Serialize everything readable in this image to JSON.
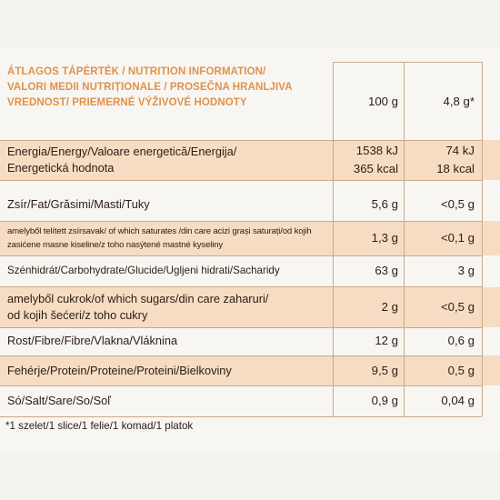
{
  "header": {
    "title_lines": [
      "ÁTLAGOS TÁPÉRTÉK / NUTRITION INFORMATION/",
      "VALORI MEDII NUTRIȚIONALE / PROSEČNA HRANLJIVA",
      "VREDNOST/ PRIEMERNÉ VÝŽIVOVÉ HODNOTY"
    ],
    "col_100g": "100 g",
    "col_serving": "4,8 g*"
  },
  "rows": [
    {
      "name_lines": [
        "Energia/Energy/Valoare energetică/Energija/",
        "Energetická hodnota"
      ],
      "per100": [
        "1538 kJ",
        "365 kcal"
      ],
      "serving": [
        "74 kJ",
        "18 kcal"
      ]
    },
    {
      "name_lines": [
        "Zsír/Fat/Grăsimi/Masti/Tuky"
      ],
      "per100": [
        "5,6 g"
      ],
      "serving": [
        "<0,5 g"
      ]
    },
    {
      "name_lines": [
        "amelyből telített zsírsavak/ of which saturates /din care acizi grași saturați/od kojih",
        "zasićene masne kiseline/z toho nasýtené mastné kyseliny"
      ],
      "per100": [
        "1,3 g"
      ],
      "serving": [
        "<0,1 g"
      ]
    },
    {
      "name_lines": [
        "Szénhidrát/Carbohydrate/Glucide/Ugljeni hidrati/Sacharidy"
      ],
      "per100": [
        "63 g"
      ],
      "serving": [
        "3 g"
      ]
    },
    {
      "name_lines": [
        "amelyből cukrok/of which sugars/din care zaharuri/",
        "od kojih šećeri/z toho cukry"
      ],
      "per100": [
        "2 g"
      ],
      "serving": [
        "<0,5 g"
      ]
    },
    {
      "name_lines": [
        "Rost/Fibre/Fibre/Vlakna/Vláknina"
      ],
      "per100": [
        "12 g"
      ],
      "serving": [
        "0,6 g"
      ]
    },
    {
      "name_lines": [
        "Fehérje/Protein/Proteine/Proteini/Bielkoviny"
      ],
      "per100": [
        "9,5 g"
      ],
      "serving": [
        "0,5 g"
      ]
    },
    {
      "name_lines": [
        "Só/Salt/Sare/So/Soľ"
      ],
      "per100": [
        "0,9 g"
      ],
      "serving": [
        "0,04 g"
      ]
    }
  ],
  "footnote": "*1 szelet/1 slice/1 felie/1 komad/1 platok",
  "colors": {
    "header_orange": "#e0924a",
    "row_shade": "#f5dcc3",
    "background": "#f8f6f3",
    "text": "#2b1d14"
  }
}
